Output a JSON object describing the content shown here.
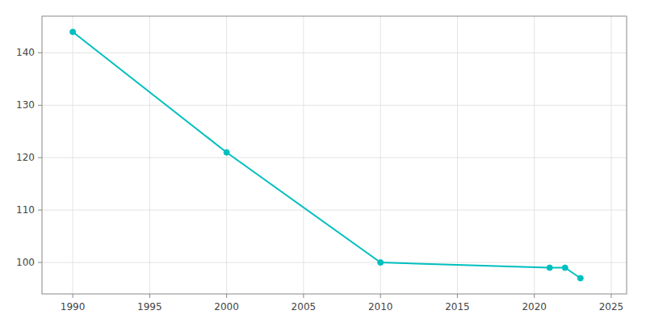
{
  "chart_data": {
    "type": "line",
    "x": [
      1990,
      2000,
      2010,
      2021,
      2022,
      2023
    ],
    "values": [
      144,
      121,
      100,
      99,
      99,
      97
    ],
    "color": "#00BFBF",
    "marker": "circle",
    "xlim": [
      1988,
      2026
    ],
    "ylim": [
      94,
      147
    ],
    "xticks": [
      1990,
      1995,
      2000,
      2005,
      2010,
      2015,
      2020,
      2025
    ],
    "yticks": [
      100,
      110,
      120,
      130,
      140
    ],
    "grid": true
  }
}
